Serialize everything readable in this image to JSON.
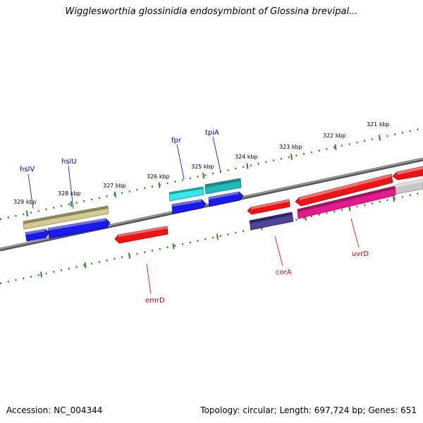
{
  "title": "Wigglesworthia glossinidia endosymbiont of Glossina brevipal...",
  "footer": {
    "accession": "Accession: NC_004344",
    "topology": "Topology: circular; Length: 697,724 bp; Genes: 651"
  },
  "colors": {
    "backbone": "#858585",
    "ruler": "#2a8a1e",
    "blue": "#1010ee",
    "red": "#ee1010",
    "cyan": "#19d7d7",
    "teal": "#19aaaa",
    "olive": "#bbb577",
    "navy": "#4a3f8f",
    "magenta": "#e01889",
    "gray": "#c2c2c2",
    "label_blue": "#0000cc",
    "label_red": "#cc0000"
  },
  "ruler_labels": [
    "321 kbp",
    "322 kbp",
    "323 kbp",
    "324 kbp",
    "325 kbp",
    "326 kbp",
    "327 kbp",
    "328 kbp",
    "329 kbp"
  ],
  "genes": [
    {
      "name": "hslV",
      "strand": "+",
      "color": "blue"
    },
    {
      "name": "hslU",
      "strand": "+",
      "color": "blue"
    },
    {
      "name": "",
      "strand": "+",
      "color": "olive"
    },
    {
      "name": "fpr",
      "strand": "+",
      "color": "blue"
    },
    {
      "name": "",
      "strand": "+",
      "color": "cyan"
    },
    {
      "name": "tpiA",
      "strand": "+",
      "color": "blue"
    },
    {
      "name": "",
      "strand": "+",
      "color": "teal"
    },
    {
      "name": "emrD",
      "strand": "-",
      "color": "red"
    },
    {
      "name": "corA",
      "strand": "-",
      "color": "navy"
    },
    {
      "name": "",
      "strand": "-",
      "color": "red"
    },
    {
      "name": "uvrD",
      "strand": "+",
      "color": "magenta"
    },
    {
      "name": "",
      "strand": "-",
      "color": "red"
    },
    {
      "name": "",
      "strand": "-",
      "color": "red"
    },
    {
      "name": "",
      "strand": "+",
      "color": "gray"
    }
  ]
}
